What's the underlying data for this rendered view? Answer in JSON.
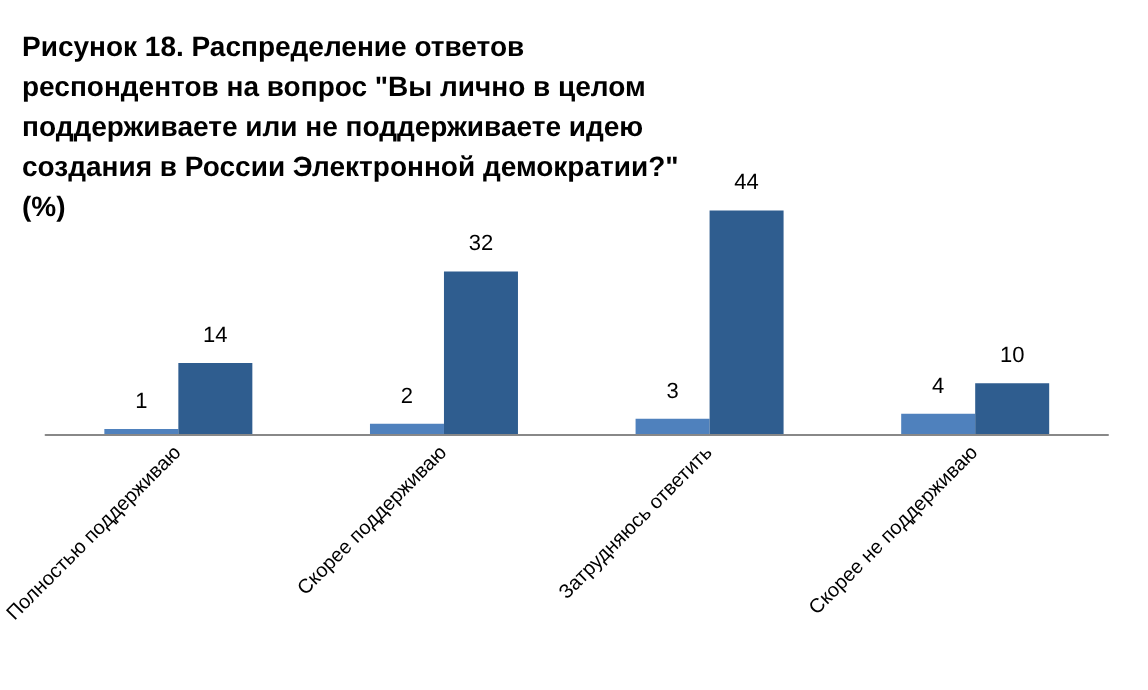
{
  "chart_data": {
    "type": "bar",
    "title": "Рисунок 18. Распределение ответов респондентов на вопрос \"Вы лично в целом поддерживаете или не поддерживаете идею создания в России Электронной демократии?\" (%)",
    "categories": [
      "Полностью поддерживаю",
      "Скорее поддерживаю",
      "Затрудняюсь ответить",
      "Скорее не поддерживаю"
    ],
    "series": [
      {
        "color": "#4f81bd",
        "values": [
          1,
          2,
          3,
          4
        ]
      },
      {
        "color": "#2f5d8f",
        "values": [
          14,
          32,
          44,
          10
        ]
      }
    ],
    "data_labels": true
  }
}
